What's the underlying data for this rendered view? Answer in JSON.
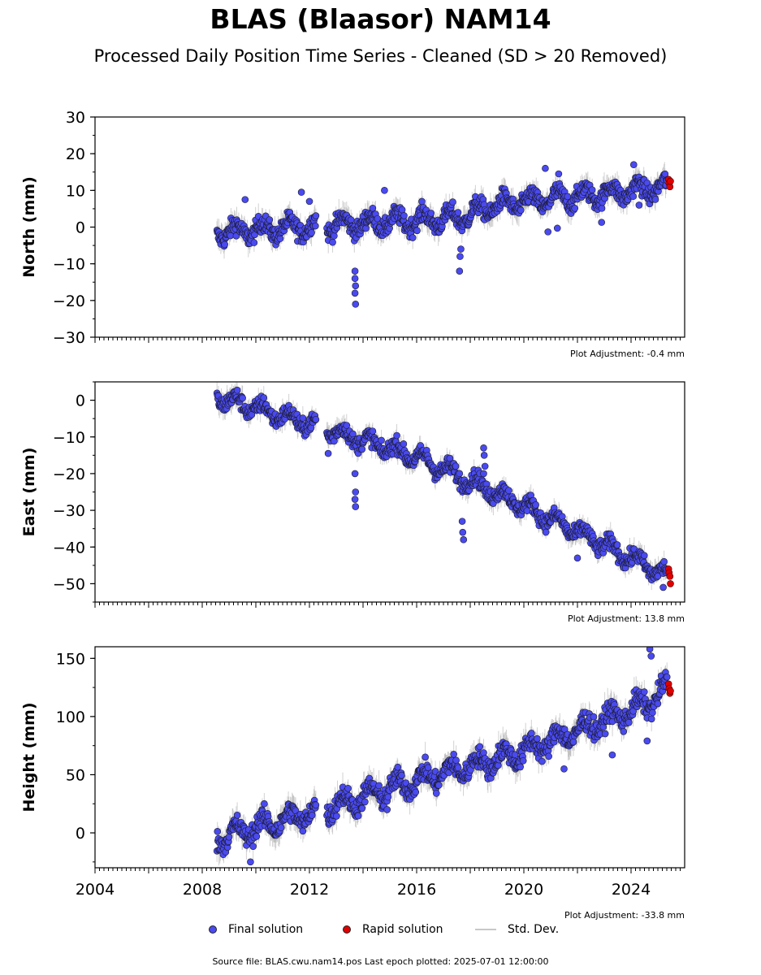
{
  "title": "BLAS (Blaasor) NAM14",
  "subtitle": "Processed Daily Position Time Series - Cleaned (SD > 20 Removed)",
  "footer": "Source file: BLAS.cwu.nam14.pos  Last epoch plotted: 2025-07-01 12:00:00",
  "legend": {
    "final": "Final solution",
    "rapid": "Rapid solution",
    "std": "Std. Dev."
  },
  "colors": {
    "final": "#4a4af0",
    "rapid": "#e00000",
    "std": "#c8c8c8",
    "edge": "#1a1a2a"
  },
  "chart_data": [
    {
      "type": "scatter",
      "ylabel": "North (mm)",
      "ylim": [
        -30,
        30
      ],
      "yticks": [
        -30,
        -20,
        -10,
        0,
        10,
        20,
        30
      ],
      "xlim": [
        2004,
        2026
      ],
      "adjustment": "Plot Adjustment: -0.4 mm",
      "trend": [
        [
          2008.5,
          -1.5
        ],
        [
          2012.7,
          0.5
        ],
        [
          2017.6,
          2.5
        ],
        [
          2019.0,
          6.0
        ],
        [
          2025.4,
          11.0
        ]
      ],
      "series": [
        {
          "name": "Final solution",
          "segments": [
            [
              2008.55,
              2012.25
            ],
            [
              2012.65,
              2025.35
            ]
          ],
          "scatter": 2.5
        },
        {
          "name": "Rapid solution",
          "points": [
            [
              2025.4,
              13
            ],
            [
              2025.42,
              12
            ],
            [
              2025.45,
              11
            ],
            [
              2025.47,
              12.5
            ]
          ]
        }
      ],
      "outliers": [
        [
          2013.7,
          -12
        ],
        [
          2013.7,
          -14
        ],
        [
          2013.72,
          -16
        ],
        [
          2013.7,
          -18
        ],
        [
          2013.72,
          -21
        ],
        [
          2017.6,
          -12
        ],
        [
          2017.62,
          -8
        ],
        [
          2017.65,
          -6
        ],
        [
          2009.6,
          7.5
        ],
        [
          2011.7,
          9.5
        ],
        [
          2012.0,
          7
        ],
        [
          2014.8,
          10
        ],
        [
          2020.8,
          16
        ],
        [
          2021.3,
          14.5
        ],
        [
          2020.9,
          -1.3
        ],
        [
          2021.25,
          -0.3
        ],
        [
          2022.9,
          1.3
        ],
        [
          2024.1,
          17
        ],
        [
          2024.3,
          6
        ]
      ]
    },
    {
      "type": "scatter",
      "ylabel": "East (mm)",
      "ylim": [
        -55,
        5
      ],
      "yticks": [
        -50,
        -40,
        -30,
        -20,
        -10,
        0
      ],
      "xlim": [
        2004,
        2026
      ],
      "adjustment": "Plot Adjustment: 13.8 mm",
      "trend": [
        [
          2008.5,
          1.0
        ],
        [
          2012.5,
          -7.5
        ],
        [
          2016.0,
          -15.5
        ],
        [
          2018.0,
          -22.0
        ],
        [
          2019.5,
          -27.0
        ],
        [
          2025.4,
          -48.0
        ]
      ],
      "series": [
        {
          "name": "Final solution",
          "segments": [
            [
              2008.55,
              2012.25
            ],
            [
              2012.65,
              2025.35
            ]
          ],
          "scatter": 2.2
        },
        {
          "name": "Rapid solution",
          "points": [
            [
              2025.4,
              -46
            ],
            [
              2025.42,
              -47
            ],
            [
              2025.45,
              -48
            ],
            [
              2025.47,
              -50
            ]
          ]
        }
      ],
      "outliers": [
        [
          2013.7,
          -20
        ],
        [
          2013.72,
          -25
        ],
        [
          2013.7,
          -27
        ],
        [
          2013.72,
          -29
        ],
        [
          2017.7,
          -33
        ],
        [
          2017.72,
          -36
        ],
        [
          2017.75,
          -38
        ],
        [
          2018.5,
          -13
        ],
        [
          2018.52,
          -15
        ],
        [
          2018.55,
          -18
        ],
        [
          2018.5,
          -20
        ],
        [
          2012.7,
          -14.5
        ],
        [
          2022.0,
          -43
        ],
        [
          2025.2,
          -51
        ]
      ]
    },
    {
      "type": "scatter",
      "ylabel": "Height (mm)",
      "ylim": [
        -30,
        160
      ],
      "yticks": [
        0,
        50,
        100,
        150
      ],
      "xlim": [
        2004,
        2026
      ],
      "xticks": [
        2004,
        2008,
        2012,
        2016,
        2020,
        2024
      ],
      "adjustment": "Plot Adjustment: -33.8 mm",
      "trend": [
        [
          2008.5,
          -5
        ],
        [
          2012.5,
          20
        ],
        [
          2016.0,
          45
        ],
        [
          2020.0,
          70
        ],
        [
          2024.5,
          110
        ],
        [
          2025.4,
          125
        ]
      ],
      "series": [
        {
          "name": "Final solution",
          "segments": [
            [
              2008.55,
              2012.25
            ],
            [
              2012.65,
              2025.35
            ]
          ],
          "scatter": 9
        },
        {
          "name": "Rapid solution",
          "points": [
            [
              2025.4,
              128
            ],
            [
              2025.42,
              124
            ],
            [
              2025.45,
              120
            ],
            [
              2025.47,
              122
            ]
          ]
        }
      ],
      "outliers": [
        [
          2009.8,
          -25
        ],
        [
          2021.5,
          55
        ],
        [
          2023.3,
          67
        ],
        [
          2024.6,
          79
        ],
        [
          2024.7,
          158
        ],
        [
          2024.75,
          152
        ],
        [
          2014.9,
          20
        ]
      ]
    }
  ]
}
